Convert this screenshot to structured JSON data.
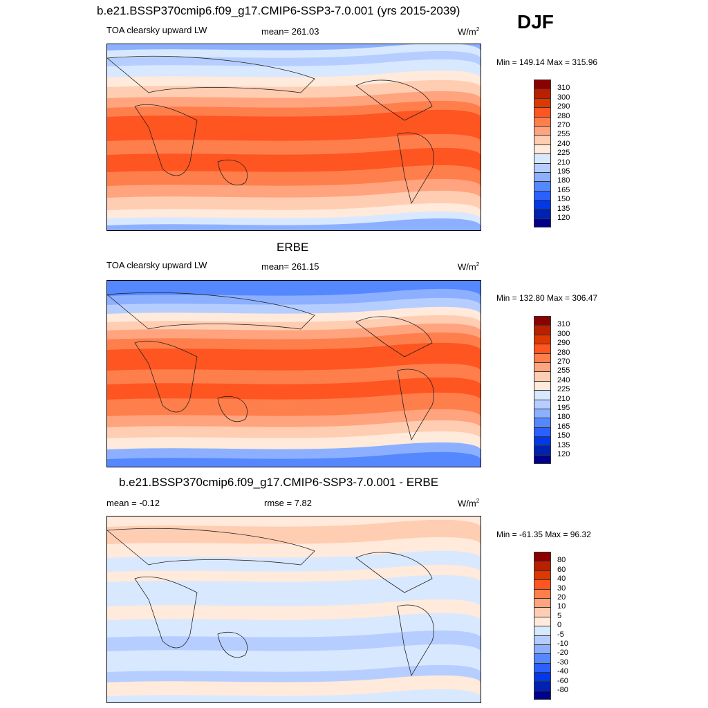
{
  "djf_label": "DJF",
  "palette": [
    "#8b0000",
    "#b82000",
    "#dc3800",
    "#ff5520",
    "#ff7f4c",
    "#ffa47e",
    "#ffcdb2",
    "#ffeadb",
    "#d8e8ff",
    "#b6ceff",
    "#8cb0ff",
    "#5588ff",
    "#2a60ff",
    "#0038ea",
    "#0022b0",
    "#00008b"
  ],
  "panels": [
    {
      "title": "b.e21.BSSP370cmip6.f09_g17.CMIP6-SSP3-7.0.001 (yrs 2015-2039)",
      "left": "TOA clearsky upward LW",
      "center": "mean= 261.03",
      "units": "W/m",
      "units_sup": "2",
      "minmax": "Min = 149.14 Max = 315.96",
      "levels": [
        "310",
        "300",
        "290",
        "280",
        "270",
        "255",
        "240",
        "225",
        "210",
        "195",
        "180",
        "165",
        "150",
        "135",
        "120"
      ]
    },
    {
      "title": "ERBE",
      "left": "TOA clearsky upward LW",
      "center": "mean= 261.15",
      "units": "W/m",
      "units_sup": "2",
      "minmax": "Min = 132.80 Max = 306.47",
      "levels": [
        "310",
        "300",
        "290",
        "280",
        "270",
        "255",
        "240",
        "225",
        "210",
        "195",
        "180",
        "165",
        "150",
        "135",
        "120"
      ]
    },
    {
      "title": "b.e21.BSSP370cmip6.f09_g17.CMIP6-SSP3-7.0.001 - ERBE",
      "left": "mean =  -0.12",
      "center": "rmse =   7.82",
      "units": "W/m",
      "units_sup": "2",
      "minmax": "Min = -61.35 Max =  96.32",
      "levels": [
        "80",
        "60",
        "40",
        "30",
        "20",
        "10",
        "5",
        "0",
        "-5",
        "-10",
        "-20",
        "-30",
        "-40",
        "-60",
        "-80"
      ]
    }
  ]
}
